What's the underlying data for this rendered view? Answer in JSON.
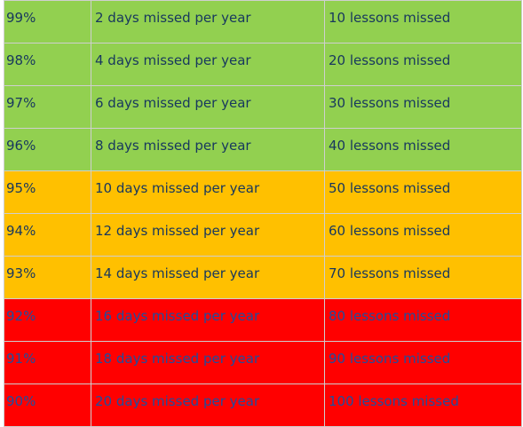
{
  "colors": {
    "green": "#92d050",
    "amber": "#ffc000",
    "red": "#ff0000",
    "text_dark": "#17375e",
    "text_on_red": "#1f4e9e"
  },
  "rows": [
    {
      "attendance": "99%",
      "days": "2 days missed per year",
      "lessons": "10 lessons missed",
      "band": "green"
    },
    {
      "attendance": "98%",
      "days": "4 days missed per year",
      "lessons": "20 lessons missed",
      "band": "green"
    },
    {
      "attendance": "97%",
      "days": "6 days missed per year",
      "lessons": "30 lessons missed",
      "band": "green"
    },
    {
      "attendance": "96%",
      "days": "8 days missed per year",
      "lessons": "40 lessons missed",
      "band": "green"
    },
    {
      "attendance": "95%",
      "days": "10 days missed per year",
      "lessons": "50 lessons missed",
      "band": "amber"
    },
    {
      "attendance": "94%",
      "days": "12 days missed per year",
      "lessons": "60 lessons missed",
      "band": "amber"
    },
    {
      "attendance": "93%",
      "days": "14 days missed per year",
      "lessons": "70 lessons missed",
      "band": "amber"
    },
    {
      "attendance": "92%",
      "days": "16 days missed per year",
      "lessons": "80 lessons missed",
      "band": "red"
    },
    {
      "attendance": "91%",
      "days": "18 days missed per year",
      "lessons": "90 lessons missed",
      "band": "red"
    },
    {
      "attendance": "90%",
      "days": "20 days missed per year",
      "lessons": "100 lessons missed",
      "band": "red"
    }
  ]
}
